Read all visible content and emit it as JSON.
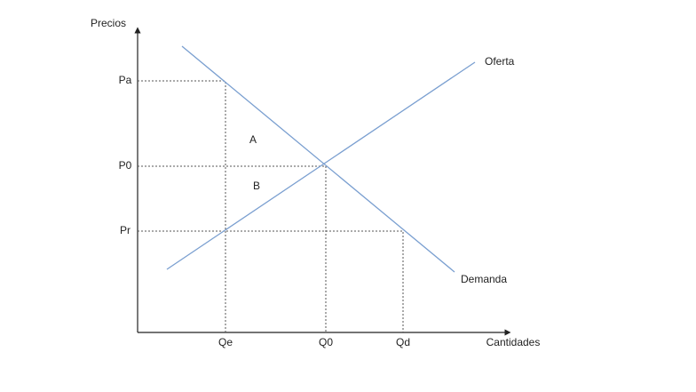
{
  "axes": {
    "y_label": "Precios",
    "x_label": "Cantidades"
  },
  "prices": [
    "Pa",
    "P0",
    "Pr"
  ],
  "quantities": [
    "Qe",
    "Q0",
    "Qd"
  ],
  "curves": {
    "supply": "Oferta",
    "demand": "Demanda"
  },
  "areas": [
    "A",
    "B"
  ]
}
